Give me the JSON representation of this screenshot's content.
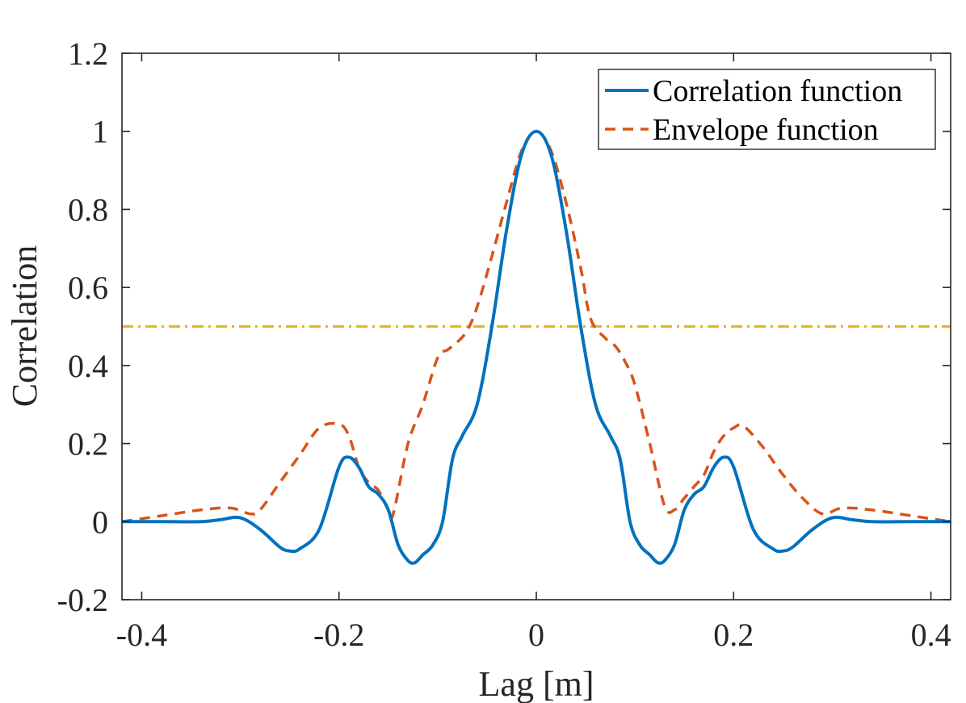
{
  "chart_data": {
    "type": "line",
    "title": "",
    "xlabel": "Lag [m]",
    "ylabel": "Correlation",
    "xlim": [
      -0.42,
      0.42
    ],
    "ylim": [
      -0.2,
      1.2
    ],
    "xticks": [
      -0.4,
      -0.2,
      0,
      0.2,
      0.4
    ],
    "xtick_labels": [
      "-0.4",
      "-0.2",
      "0",
      "0.2",
      "0.4"
    ],
    "yticks": [
      -0.2,
      0,
      0.2,
      0.4,
      0.6,
      0.8,
      1.0,
      1.2
    ],
    "ytick_labels": [
      "-0.2",
      "0",
      "0.2",
      "0.4",
      "0.6",
      "0.8",
      "1",
      "1.2"
    ],
    "grid": false,
    "legend_position": "top-right",
    "threshold": {
      "y": 0.5,
      "color": "#EDB120",
      "style": "dash-dot"
    },
    "series": [
      {
        "name": "Correlation function",
        "color": "#0072BD",
        "style": "solid",
        "x": [
          -0.42,
          -0.38,
          -0.34,
          -0.32,
          -0.3,
          -0.28,
          -0.26,
          -0.25,
          -0.24,
          -0.22,
          -0.2,
          -0.19,
          -0.18,
          -0.17,
          -0.16,
          -0.15,
          -0.14,
          -0.13,
          -0.123,
          -0.115,
          -0.105,
          -0.095,
          -0.085,
          -0.075,
          -0.06,
          -0.045,
          -0.03,
          -0.015,
          0,
          0.015,
          0.03,
          0.045,
          0.06,
          0.075,
          0.085,
          0.095,
          0.105,
          0.115,
          0.123,
          0.13,
          0.14,
          0.15,
          0.16,
          0.17,
          0.18,
          0.19,
          0.2,
          0.22,
          0.24,
          0.25,
          0.26,
          0.28,
          0.3,
          0.32,
          0.34,
          0.38,
          0.42
        ],
        "values": [
          0.0,
          0.0,
          0.0,
          0.005,
          0.01,
          -0.02,
          -0.065,
          -0.075,
          -0.07,
          -0.02,
          0.14,
          0.165,
          0.14,
          0.09,
          0.07,
          0.03,
          -0.06,
          -0.1,
          -0.105,
          -0.085,
          -0.06,
          0.0,
          0.16,
          0.22,
          0.3,
          0.5,
          0.75,
          0.94,
          1.0,
          0.94,
          0.75,
          0.5,
          0.3,
          0.22,
          0.16,
          0.0,
          -0.06,
          -0.085,
          -0.105,
          -0.1,
          -0.06,
          0.03,
          0.07,
          0.09,
          0.14,
          0.165,
          0.14,
          -0.02,
          -0.07,
          -0.075,
          -0.065,
          -0.02,
          0.01,
          0.005,
          0.0,
          0.0,
          0.0
        ]
      },
      {
        "name": "Envelope function",
        "color": "#D95319",
        "style": "dashed",
        "x": [
          -0.42,
          -0.38,
          -0.34,
          -0.31,
          -0.29,
          -0.28,
          -0.26,
          -0.24,
          -0.22,
          -0.2,
          -0.19,
          -0.18,
          -0.17,
          -0.16,
          -0.15,
          -0.145,
          -0.13,
          -0.115,
          -0.1,
          -0.09,
          -0.08,
          -0.07,
          -0.06,
          -0.045,
          -0.03,
          -0.015,
          0,
          0.015,
          0.03,
          0.045,
          0.055,
          0.07,
          0.08,
          0.09,
          0.1,
          0.115,
          0.13,
          0.14,
          0.15,
          0.16,
          0.17,
          0.18,
          0.19,
          0.2,
          0.21,
          0.23,
          0.25,
          0.27,
          0.29,
          0.31,
          0.34,
          0.38,
          0.42
        ],
        "values": [
          0.0,
          0.015,
          0.03,
          0.035,
          0.02,
          0.03,
          0.1,
          0.17,
          0.24,
          0.25,
          0.22,
          0.14,
          0.1,
          0.08,
          0.03,
          0.02,
          0.2,
          0.3,
          0.42,
          0.44,
          0.46,
          0.49,
          0.55,
          0.68,
          0.82,
          0.95,
          1.0,
          0.95,
          0.82,
          0.65,
          0.52,
          0.47,
          0.45,
          0.41,
          0.35,
          0.2,
          0.04,
          0.03,
          0.06,
          0.09,
          0.12,
          0.18,
          0.22,
          0.24,
          0.245,
          0.19,
          0.12,
          0.06,
          0.02,
          0.035,
          0.03,
          0.015,
          0.0
        ]
      }
    ]
  }
}
